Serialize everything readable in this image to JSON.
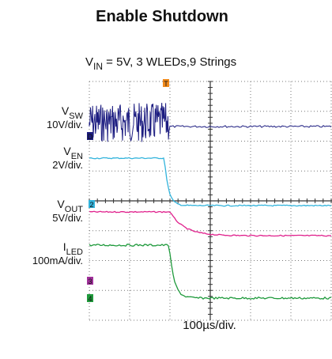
{
  "header": {
    "title": "Enable Shutdown"
  },
  "subtitle": {
    "symbol": "V",
    "subscript": "IN",
    "text": " = 5V, 3 WLEDs,9 Strings"
  },
  "channels": [
    {
      "symbol": "V",
      "subscript": "SW",
      "scale": "10V/div."
    },
    {
      "symbol": "V",
      "subscript": "EN",
      "scale": "2V/div."
    },
    {
      "symbol": "V",
      "subscript": "OUT",
      "scale": "5V/div."
    },
    {
      "symbol": "I",
      "subscript": "LED",
      "scale": "100mA/div."
    }
  ],
  "timebase": "100µs/div."
}
